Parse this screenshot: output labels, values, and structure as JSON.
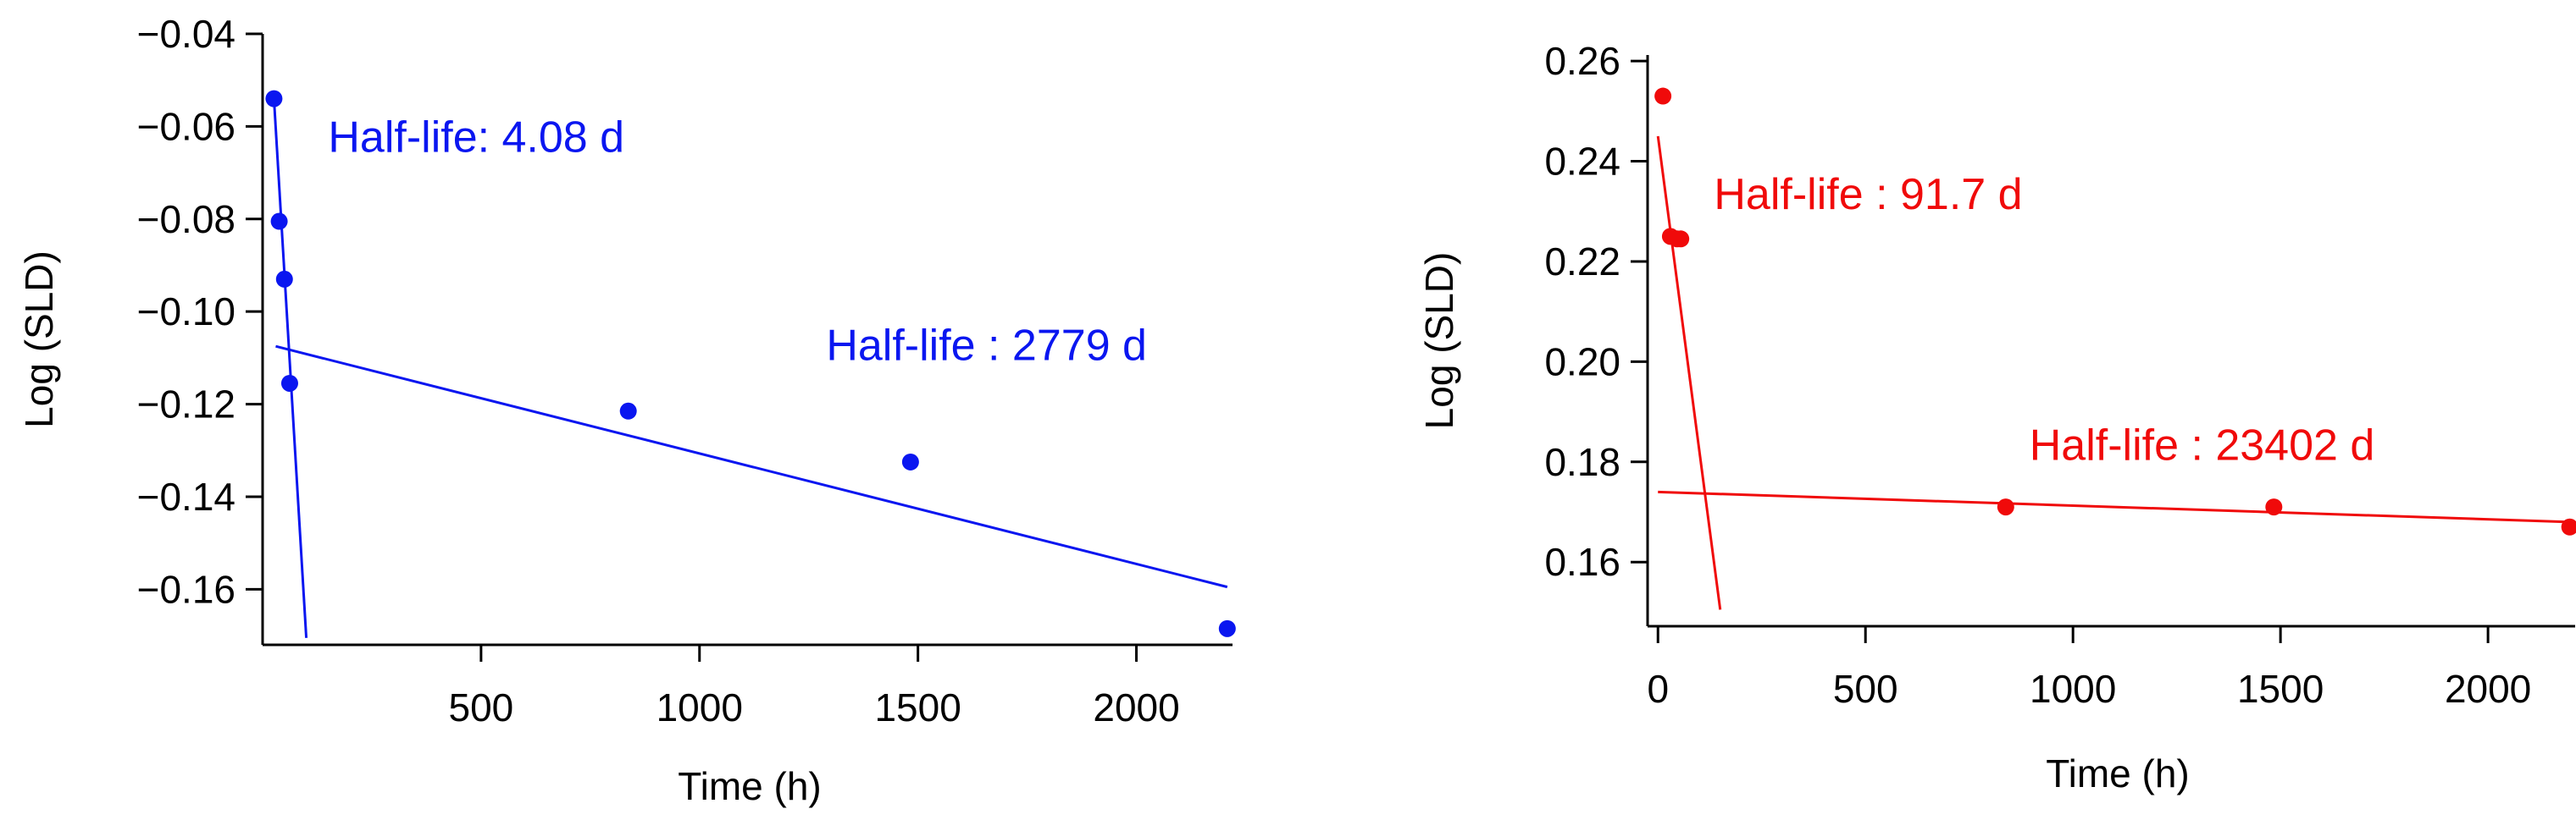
{
  "chart_data": [
    {
      "type": "scatter",
      "title": "",
      "xlabel": "Time (h)",
      "ylabel": "Log (SLD)",
      "xlim": [
        0,
        2220
      ],
      "ylim": [
        -0.172,
        -0.04
      ],
      "xticks": [
        500,
        1000,
        1500,
        2000
      ],
      "yticks": [
        -0.04,
        -0.06,
        -0.08,
        -0.1,
        -0.12,
        -0.14,
        -0.16
      ],
      "ytick_labels": [
        "−0.04",
        "−0.06",
        "−0.08",
        "−0.10",
        "−0.12",
        "−0.14",
        "−0.16"
      ],
      "color": "#0a16f0",
      "series": [
        {
          "name": "observed",
          "x": [
            26,
            38,
            50,
            62,
            837,
            1483,
            2208
          ],
          "y": [
            -0.054,
            -0.0805,
            -0.093,
            -0.1155,
            -0.1215,
            -0.1325,
            -0.1685
          ]
        }
      ],
      "fit_lines": [
        {
          "name": "fast-phase-fit",
          "x": [
            26,
            100
          ],
          "y": [
            -0.054,
            -0.1705
          ]
        },
        {
          "name": "slow-phase-fit",
          "x": [
            30,
            2208
          ],
          "y": [
            -0.1075,
            -0.1595
          ]
        }
      ],
      "annotations": [
        {
          "text": "Half-life: 4.08 d",
          "x": 150,
          "y": -0.0655
        },
        {
          "text": "Half-life : 2779 d",
          "x": 1290,
          "y": -0.1105
        }
      ]
    },
    {
      "type": "scatter",
      "title": "",
      "xlabel": "Time (h)",
      "ylabel": "Log (SLD)",
      "xlim": [
        -25,
        2210
      ],
      "ylim": [
        0.1472,
        0.2612
      ],
      "xticks": [
        0,
        500,
        1000,
        1500,
        2000
      ],
      "yticks": [
        0.16,
        0.18,
        0.2,
        0.22,
        0.24,
        0.26
      ],
      "ytick_labels": [
        "0.16",
        "0.18",
        "0.20",
        "0.22",
        "0.24",
        "0.26"
      ],
      "color": "#f00a0a",
      "series": [
        {
          "name": "observed",
          "x": [
            12,
            30,
            46,
            55,
            838,
            1484,
            2197
          ],
          "y": [
            0.253,
            0.225,
            0.2245,
            0.2245,
            0.171,
            0.171,
            0.167
          ]
        }
      ],
      "fit_lines": [
        {
          "name": "fast-phase-fit",
          "x": [
            0,
            150
          ],
          "y": [
            0.245,
            0.1505
          ]
        },
        {
          "name": "slow-phase-fit",
          "x": [
            0,
            2197
          ],
          "y": [
            0.174,
            0.168
          ]
        }
      ],
      "annotations": [
        {
          "text": "Half-life : 91.7 d",
          "x": 135,
          "y": 0.2305
        },
        {
          "text": "Half-life : 23402 d",
          "x": 895,
          "y": 0.1804
        }
      ]
    }
  ]
}
